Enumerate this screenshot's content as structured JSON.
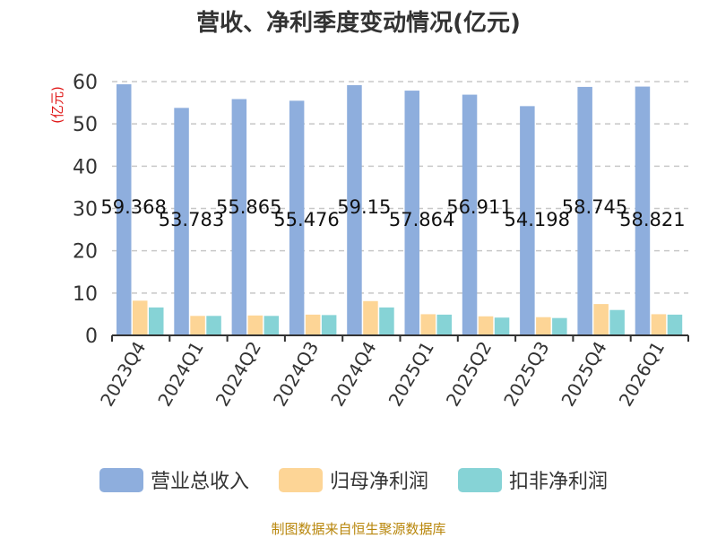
{
  "chart_data": {
    "type": "bar",
    "title": "营收、净利季度变动情况(亿元)",
    "ylabel": "(亿元)",
    "xlabel": "",
    "ylim": [
      0,
      60
    ],
    "yticks": [
      "0",
      "10",
      "20",
      "30",
      "40",
      "50",
      "60"
    ],
    "grid": true,
    "legend": "bottom",
    "categories": [
      "2023Q4",
      "2024Q1",
      "2024Q2",
      "2024Q3",
      "2024Q4",
      "2025Q1",
      "2025Q2",
      "2025Q3",
      "2025Q4",
      "2026Q1"
    ],
    "series": [
      {
        "name": "营业总收入",
        "color": "#8eaedd",
        "values": [
          59.368,
          53.783,
          55.865,
          55.476,
          59.15,
          57.864,
          56.911,
          54.198,
          58.745,
          58.821
        ]
      },
      {
        "name": "归母净利润",
        "color": "#fdd596",
        "values": [
          8.2,
          4.6,
          4.7,
          4.9,
          8.1,
          5.0,
          4.5,
          4.3,
          7.4,
          5.0
        ]
      },
      {
        "name": "扣非净利润",
        "color": "#86d3d6",
        "values": [
          6.6,
          4.6,
          4.6,
          4.8,
          6.6,
          4.9,
          4.2,
          4.1,
          6.0,
          4.9
        ]
      }
    ],
    "data_labels": [
      "59.368",
      "53.783",
      "55.865",
      "55.476",
      "59.15",
      "57.864",
      "56.911",
      "54.198",
      "58.745",
      "58.821"
    ]
  },
  "source": "制图数据来自恒生聚源数据库"
}
